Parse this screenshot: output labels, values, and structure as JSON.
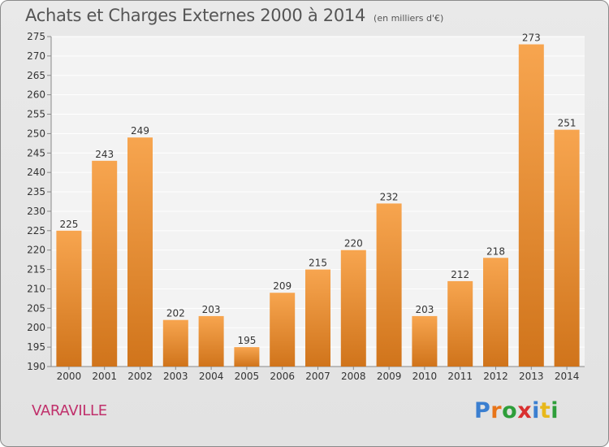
{
  "header": {
    "title": "Achats et Charges Externes 2000 à 2014",
    "unit": "(en milliers d'€)"
  },
  "footer": {
    "commune": "VARAVILLE",
    "brand": "Proxiti",
    "brand_colors": [
      "#3b7fd0",
      "#e8751a",
      "#2e9e3a",
      "#d93030",
      "#3b7fd0",
      "#e8b81a",
      "#2e9e3a"
    ]
  },
  "colors": {
    "bar_top": "#f7a54f",
    "bar_bottom": "#d0741b",
    "plot_bg": "#f3f3f3",
    "grid": "#ffffff",
    "text": "#333333"
  },
  "chart_data": {
    "type": "bar",
    "title": "Achats et Charges Externes 2000 à 2014",
    "subtitle": "(en milliers d'€)",
    "xlabel": "",
    "ylabel": "",
    "categories": [
      "2000",
      "2001",
      "2002",
      "2003",
      "2004",
      "2005",
      "2006",
      "2007",
      "2008",
      "2009",
      "2010",
      "2011",
      "2012",
      "2013",
      "2014"
    ],
    "values": [
      225,
      243,
      249,
      202,
      203,
      195,
      209,
      215,
      220,
      232,
      203,
      212,
      218,
      273,
      251
    ],
    "ylim": [
      190,
      275
    ],
    "yticks": [
      190,
      195,
      200,
      205,
      210,
      215,
      220,
      225,
      230,
      235,
      240,
      245,
      250,
      255,
      260,
      265,
      270,
      275
    ],
    "grid": true,
    "legend": "none"
  }
}
